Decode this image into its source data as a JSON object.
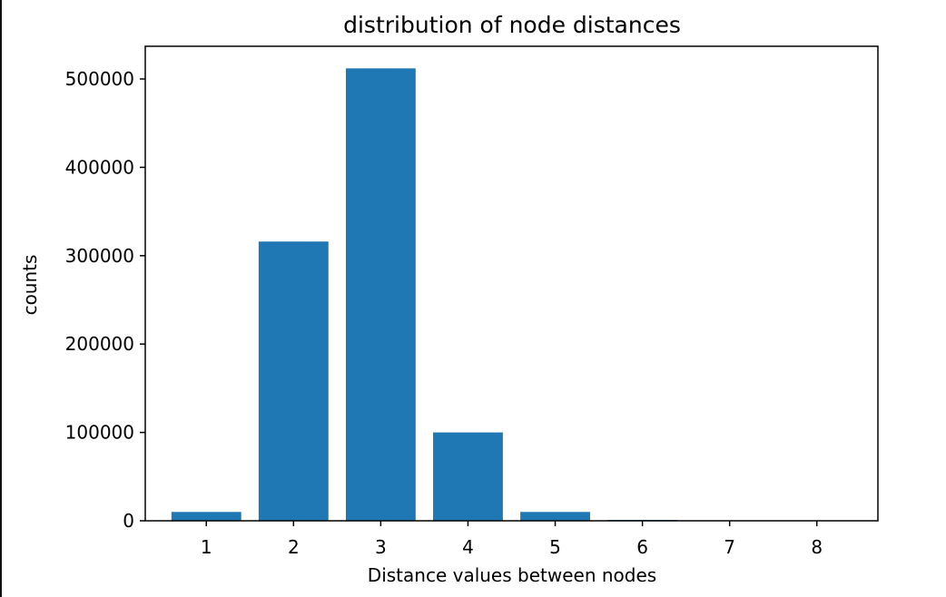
{
  "chart_data": {
    "type": "bar",
    "title": "distribution of node distances",
    "xlabel": "Distance values between nodes",
    "ylabel": "counts",
    "categories": [
      "1",
      "2",
      "3",
      "4",
      "5",
      "6",
      "7",
      "8"
    ],
    "values": [
      10000,
      316000,
      512000,
      100000,
      10000,
      1000,
      200,
      50
    ],
    "y_ticks": [
      0,
      100000,
      200000,
      300000,
      400000,
      500000
    ],
    "y_tick_labels": [
      "0",
      "100000",
      "200000",
      "300000",
      "400000",
      "500000"
    ],
    "ylim": [
      0,
      537000
    ],
    "xlim": [
      0.3,
      8.7
    ],
    "bar_color": "#1f77b4",
    "grid": false,
    "legend": "none"
  }
}
